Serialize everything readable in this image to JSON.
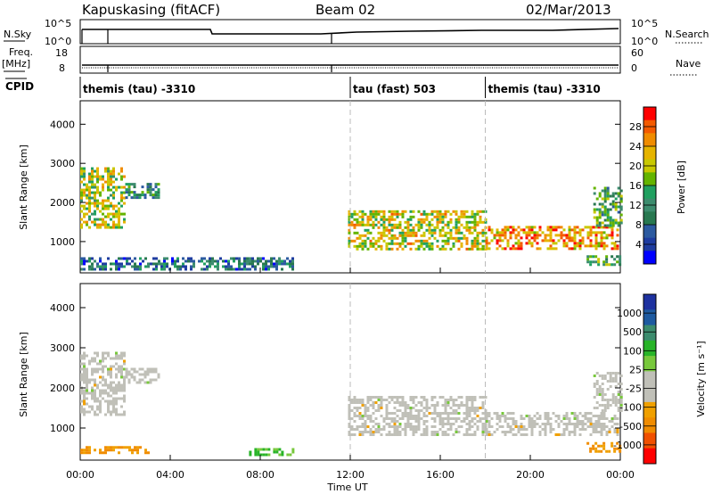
{
  "header": {
    "station_label": "Kapuskasing (fitACF)",
    "beam_label": "Beam 02",
    "date_label": "02/Mar/2013"
  },
  "noise_panel": {
    "left_label": "N.Sky",
    "right_label": "N.Search",
    "left_ticks": [
      "10^5",
      "10^0"
    ],
    "right_ticks": [
      "10^5",
      "10^0"
    ]
  },
  "freq_panel": {
    "left_label_top": "Freq.",
    "left_label_bottom": "[MHz]",
    "right_label": "Nave",
    "left_ticks": [
      "18",
      "8"
    ],
    "right_ticks": [
      "60",
      "0"
    ]
  },
  "cpid_panel": {
    "label": "CPID",
    "segments": [
      {
        "start_hour": 0,
        "end_hour": 12,
        "text": "themis (tau) -3310"
      },
      {
        "start_hour": 12,
        "end_hour": 18,
        "text": "tau (fast) 503"
      },
      {
        "start_hour": 18,
        "end_hour": 24,
        "text": "themis (tau) -3310"
      }
    ]
  },
  "power_colorbar": {
    "label": "Power [dB]",
    "ticks": [
      "28",
      "24",
      "20",
      "16",
      "12",
      "8",
      "4"
    ],
    "colors": [
      "#ff0000",
      "#f45a00",
      "#f08c00",
      "#e6b400",
      "#c8c800",
      "#64b400",
      "#20a060",
      "#3c8c6e",
      "#287850",
      "#2c5aa0",
      "#1e3ca0",
      "#0000ff"
    ]
  },
  "velocity_colorbar": {
    "label": "Velocity [m s⁻¹]",
    "ticks": [
      "1000",
      "500",
      "100",
      "25",
      "-25",
      "-100",
      "-500",
      "-1000"
    ],
    "colors": [
      "#1e32a0",
      "#1e5aa0",
      "#3c8c6e",
      "#28b428",
      "#78c83c",
      "#c0c0b8",
      "#c0c0b8",
      "#f0a000",
      "#f08c00",
      "#f05000",
      "#ff0000"
    ]
  },
  "chart_data": [
    {
      "type": "heatmap",
      "name": "power",
      "ylabel": "Slant Range [km]",
      "yticks": [
        1000,
        2000,
        3000,
        4000
      ],
      "ylim": [
        200,
        4600
      ],
      "xlim_hours": [
        0,
        24
      ],
      "regions": [
        {
          "t0": 0.0,
          "t1": 2.0,
          "r0": 1350,
          "r1": 2900,
          "intensity": 0.55
        },
        {
          "t0": 2.0,
          "t1": 3.5,
          "r0": 2150,
          "r1": 2500,
          "intensity": 0.3
        },
        {
          "t0": 0.0,
          "t1": 9.5,
          "r0": 300,
          "r1": 600,
          "intensity": 0.2
        },
        {
          "t0": 11.9,
          "t1": 18.0,
          "r0": 800,
          "r1": 1800,
          "intensity": 0.6
        },
        {
          "t0": 18.0,
          "t1": 23.9,
          "r0": 800,
          "r1": 1400,
          "intensity": 0.75
        },
        {
          "t0": 22.5,
          "t1": 24.0,
          "r0": 400,
          "r1": 650,
          "intensity": 0.4
        },
        {
          "t0": 22.8,
          "t1": 24.0,
          "r0": 1400,
          "r1": 2400,
          "intensity": 0.4
        }
      ]
    },
    {
      "type": "heatmap",
      "name": "velocity",
      "ylabel": "Slant Range [km]",
      "xlabel": "Time UT",
      "yticks": [
        1000,
        2000,
        3000,
        4000
      ],
      "ylim": [
        200,
        4600
      ],
      "xlim_hours": [
        0,
        24
      ],
      "xticks": [
        "00:00",
        "04:00",
        "08:00",
        "12:00",
        "16:00",
        "20:00",
        "00:00"
      ],
      "regions": [
        {
          "t0": 0.0,
          "t1": 2.0,
          "r0": 1350,
          "r1": 2900,
          "velocity": 0
        },
        {
          "t0": 2.0,
          "t1": 3.5,
          "r0": 2150,
          "r1": 2500,
          "velocity": 0
        },
        {
          "t0": 0.0,
          "t1": 3.0,
          "r0": 350,
          "r1": 550,
          "velocity": -150
        },
        {
          "t0": 7.5,
          "t1": 9.5,
          "r0": 350,
          "r1": 500,
          "velocity": 60
        },
        {
          "t0": 11.9,
          "t1": 18.0,
          "r0": 800,
          "r1": 1800,
          "velocity": 0
        },
        {
          "t0": 18.0,
          "t1": 23.9,
          "r0": 800,
          "r1": 1400,
          "velocity": 0
        },
        {
          "t0": 22.5,
          "t1": 24.0,
          "r0": 400,
          "r1": 650,
          "velocity": -200
        },
        {
          "t0": 22.8,
          "t1": 24.0,
          "r0": 1400,
          "r1": 2400,
          "velocity": 0
        }
      ]
    }
  ]
}
